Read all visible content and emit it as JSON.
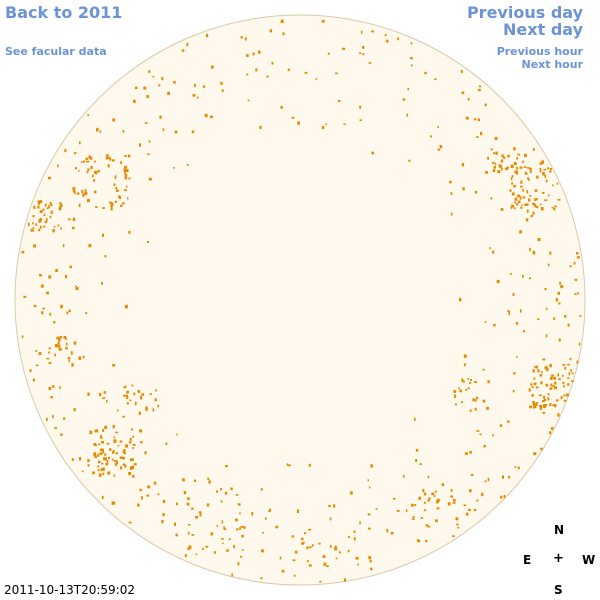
{
  "nav": {
    "back": "Back to 2011",
    "facular": "See facular data",
    "previous_day": "Previous day",
    "next_day": "Next day",
    "previous_hour": "Previous hour",
    "next_hour": "Next hour"
  },
  "compass": {
    "north": "N",
    "east": "E",
    "center": "+",
    "west": "W",
    "south": "S"
  },
  "timestamp": "2011-10-13T20:59:02",
  "colors": {
    "link": "#6b93d6",
    "disk_fill": "#fff8ec",
    "disk_edge": "#d9c9a8",
    "facula": "#e58a00"
  }
}
